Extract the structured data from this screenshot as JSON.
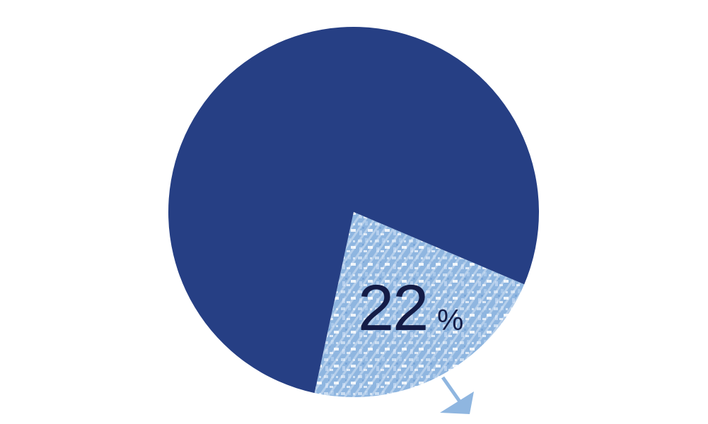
{
  "chart_data": {
    "type": "pie",
    "slices": [
      {
        "value": 78,
        "color": "#263f84"
      },
      {
        "value": 22,
        "color": "#8fb6e0",
        "highlighted": true,
        "label_value": "22",
        "label_unit": "%"
      }
    ]
  }
}
